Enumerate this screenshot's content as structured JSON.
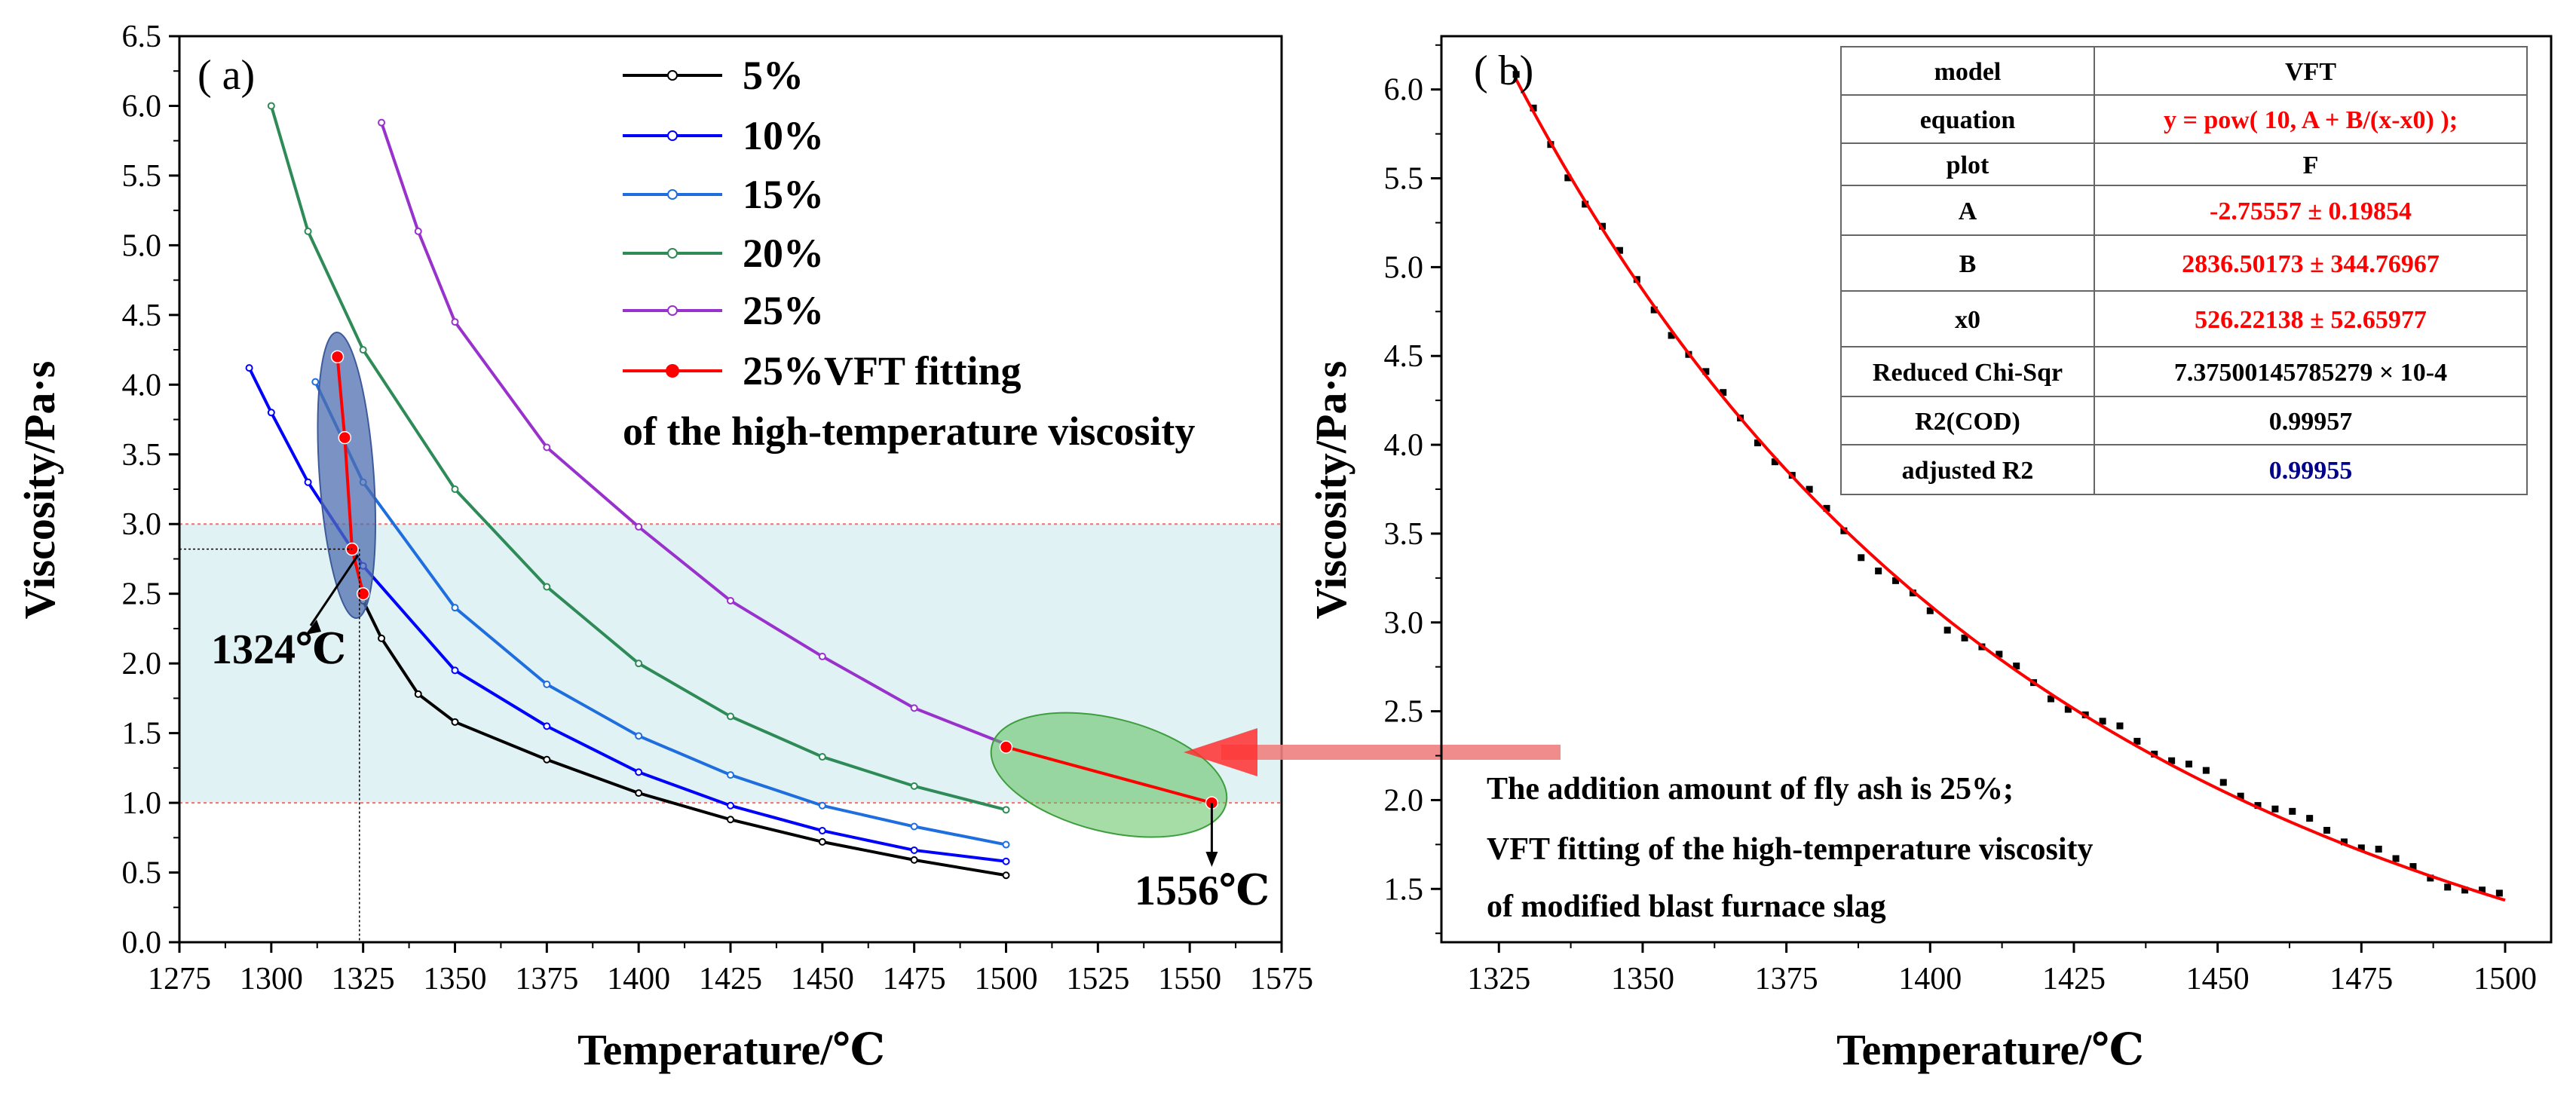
{
  "colors": {
    "c5": "#000000",
    "c10": "#0000ff",
    "c15": "#1e6ee0",
    "c20": "#2e8b57",
    "c25": "#9932cc",
    "fit": "#ff0000",
    "band": "#e0f2f4",
    "ellipse_blue": "#4f6fb0",
    "ellipse_green": "#5cc05c",
    "table_red": "#ff0000",
    "table_blue": "#00008b"
  },
  "chart_data": [
    {
      "panel_label": "( a)",
      "type": "line",
      "xlabel": "Temperature/℃",
      "ylabel": "Viscosity/Pa·s",
      "xlim": [
        1275,
        1575
      ],
      "ylim": [
        0.0,
        6.5
      ],
      "x_ticks": [
        "1275",
        "1300",
        "1325",
        "1350",
        "1375",
        "1400",
        "1425",
        "1450",
        "1475",
        "1500",
        "1525",
        "1550",
        "1575"
      ],
      "y_ticks": [
        "0.0",
        "0.5",
        "1.0",
        "1.5",
        "2.0",
        "2.5",
        "3.0",
        "3.5",
        "4.0",
        "4.5",
        "5.0",
        "5.5",
        "6.0",
        "6.5"
      ],
      "band": {
        "y_low": 1.0,
        "y_high": 3.0
      },
      "legend": [
        "5%",
        "10%",
        "15%",
        "20%",
        "25%",
        "25%VFT fitting",
        "of the high-temperature viscosity"
      ],
      "series": [
        {
          "name": "5%",
          "x": [
            1325,
            1330,
            1340,
            1350,
            1375,
            1400,
            1425,
            1450,
            1475,
            1500
          ],
          "y": [
            2.45,
            2.18,
            1.78,
            1.58,
            1.31,
            1.07,
            0.88,
            0.72,
            0.59,
            0.48
          ]
        },
        {
          "name": "10%",
          "x": [
            1294,
            1300,
            1310,
            1325,
            1350,
            1375,
            1400,
            1425,
            1450,
            1475,
            1500
          ],
          "y": [
            4.12,
            3.8,
            3.3,
            2.7,
            1.95,
            1.55,
            1.22,
            0.98,
            0.8,
            0.66,
            0.58
          ]
        },
        {
          "name": "15%",
          "x": [
            1312,
            1325,
            1350,
            1375,
            1400,
            1425,
            1450,
            1475,
            1500
          ],
          "y": [
            4.02,
            3.3,
            2.4,
            1.85,
            1.48,
            1.2,
            0.98,
            0.83,
            0.7
          ]
        },
        {
          "name": "20%",
          "x": [
            1300,
            1310,
            1325,
            1350,
            1375,
            1400,
            1425,
            1450,
            1475,
            1500
          ],
          "y": [
            6.0,
            5.1,
            4.25,
            3.25,
            2.55,
            2.0,
            1.62,
            1.33,
            1.12,
            0.95
          ]
        },
        {
          "name": "25%",
          "x": [
            1330,
            1340,
            1350,
            1375,
            1400,
            1425,
            1450,
            1475,
            1500
          ],
          "y": [
            5.88,
            5.1,
            4.45,
            3.55,
            2.98,
            2.45,
            2.05,
            1.68,
            1.42
          ]
        }
      ],
      "fit_points": [
        {
          "x": 1318,
          "y": 4.2
        },
        {
          "x": 1320,
          "y": 3.62
        },
        {
          "x": 1322,
          "y": 2.82
        },
        {
          "x": 1325,
          "y": 2.5
        }
      ],
      "fit_points_right": [
        {
          "x": 1500,
          "y": 1.4
        },
        {
          "x": 1556,
          "y": 1.0
        }
      ],
      "annotations": [
        "1324℃",
        "1556℃"
      ]
    },
    {
      "panel_label": "( b)",
      "type": "scatter",
      "xlabel": "Temperature/℃",
      "ylabel": "Viscosity/Pa·s",
      "xlim": [
        1315,
        1508
      ],
      "ylim": [
        1.2,
        6.3
      ],
      "x_ticks": [
        "1325",
        "1350",
        "1375",
        "1400",
        "1425",
        "1450",
        "1475",
        "1500"
      ],
      "y_ticks": [
        "1.5",
        "2.0",
        "2.5",
        "3.0",
        "3.5",
        "4.0",
        "4.5",
        "5.0",
        "5.5",
        "6.0"
      ],
      "vft": {
        "A": -2.75557,
        "B": 2836.50173,
        "x0": 526.22138,
        "x_start": 1328,
        "x_end": 1500
      },
      "points_x_range": [
        1328,
        1500
      ],
      "points_step": 3,
      "note_lines": [
        "The addition amount of fly ash is 25%;",
        "VFT fitting of the high-temperature viscosity",
        "of modified blast furnace slag"
      ],
      "table": [
        [
          "model",
          "VFT"
        ],
        [
          "equation",
          "y = pow( 10, A + B/(x-x0) );"
        ],
        [
          "plot",
          "F"
        ],
        [
          "A",
          "-2.75557 ± 0.19854"
        ],
        [
          "B",
          "2836.50173 ± 344.76967"
        ],
        [
          "x0",
          "526.22138 ± 52.65977"
        ],
        [
          "Reduced Chi-Sqr",
          "7.37500145785279 × 10-4"
        ],
        [
          "R2(COD)",
          "0.99957"
        ],
        [
          "adjusted R2",
          "0.99955"
        ]
      ]
    }
  ]
}
